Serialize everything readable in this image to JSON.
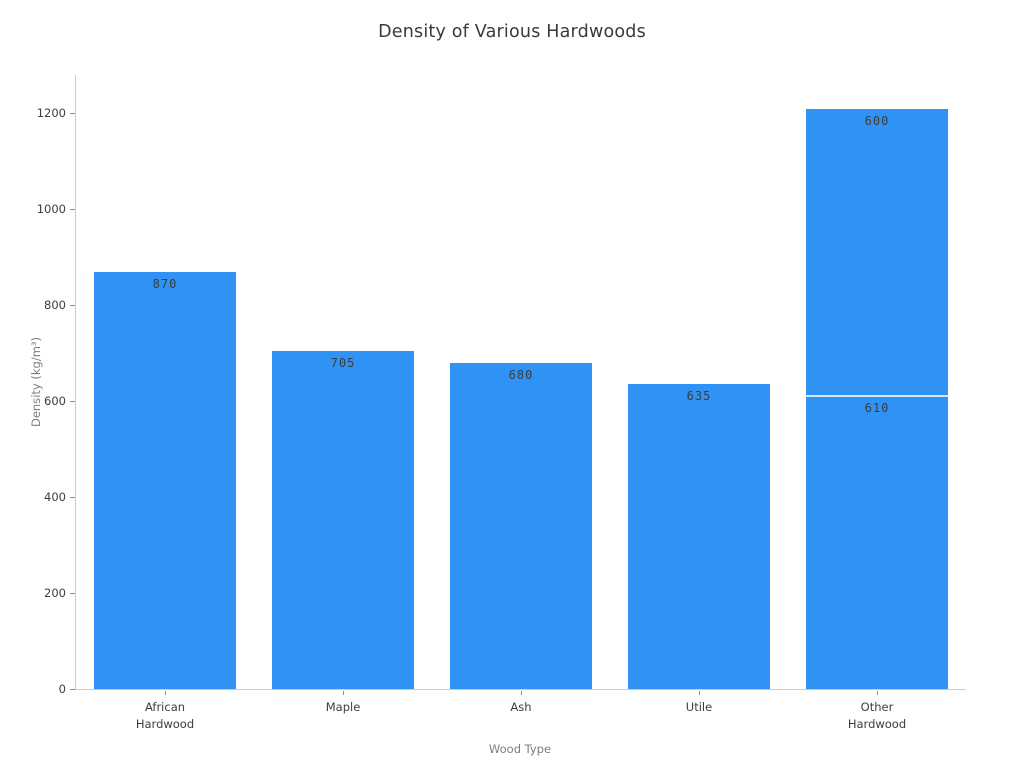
{
  "chart_data": {
    "type": "bar",
    "title": "Density of Various Hardwoods",
    "xlabel": "Wood Type",
    "ylabel": "Density (kg/m³)",
    "categories": [
      "African\nHardwood",
      "Maple",
      "Ash",
      "Utile",
      "Other\nHardwood"
    ],
    "stacks": [
      [
        870
      ],
      [
        705
      ],
      [
        680
      ],
      [
        635
      ],
      [
        610,
        600
      ]
    ],
    "totals": [
      870,
      705,
      680,
      635,
      1210
    ],
    "yticks": [
      0,
      200,
      400,
      600,
      800,
      1000,
      1200
    ],
    "ylim": [
      0,
      1280
    ],
    "bar_color": "#2e93f5",
    "separator_color": "#dce4ec",
    "spine_color": "#c9cdd1",
    "background": "#ffffff",
    "grid": false,
    "legend": "none"
  }
}
